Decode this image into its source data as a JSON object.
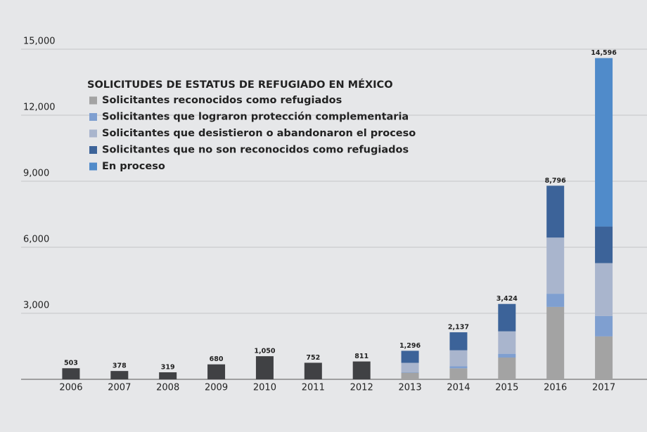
{
  "chart_data": {
    "type": "stacked_bar",
    "legend_title": "SOLICITUDES DE ESTATUS DE REFUGIADO EN MÉXICO",
    "categories": [
      "2006",
      "2007",
      "2008",
      "2009",
      "2010",
      "2011",
      "2012",
      "2013",
      "2014",
      "2015",
      "2016",
      "2017"
    ],
    "series": [
      {
        "name": "Solicitantes reconocidos como refugiados",
        "color": "#a3a3a3",
        "values": [
          null,
          null,
          null,
          null,
          null,
          null,
          null,
          300,
          500,
          990,
          3290,
          1950
        ]
      },
      {
        "name": "Solicitantes que lograron protección complementaria",
        "color": "#7f9fd0",
        "values": [
          null,
          null,
          null,
          null,
          null,
          null,
          null,
          20,
          90,
          170,
          600,
          930
        ]
      },
      {
        "name": "Solicitantes que desistieron o abandonaron el proceso",
        "color": "#a9b5cd",
        "values": [
          null,
          null,
          null,
          null,
          null,
          null,
          null,
          430,
          730,
          1020,
          2550,
          2400
        ]
      },
      {
        "name": "Solicitantes que no son reconocidos como refugiados",
        "color": "#3c6399",
        "values": [
          null,
          null,
          null,
          null,
          null,
          null,
          null,
          546,
          817,
          1244,
          2356,
          1660
        ]
      },
      {
        "name": "En proceso",
        "color": "#508bca",
        "values": [
          null,
          null,
          null,
          null,
          null,
          null,
          null,
          0,
          0,
          0,
          0,
          7656
        ]
      }
    ],
    "totals": {
      "color": "#404144",
      "values": [
        503,
        378,
        319,
        680,
        1050,
        752,
        811,
        1296,
        2137,
        3424,
        8796,
        14596
      ],
      "value_labels": [
        "503",
        "378",
        "319",
        "680",
        "1,050",
        "752",
        "811",
        "1,296",
        "2,137",
        "3,424",
        "8,796",
        "14,596"
      ]
    },
    "ylim": [
      0,
      15000
    ],
    "yticks": [
      {
        "value": 3000,
        "label": "3,000"
      },
      {
        "value": 6000,
        "label": "6,000"
      },
      {
        "value": 9000,
        "label": "9,000"
      },
      {
        "value": 12000,
        "label": "12,000"
      },
      {
        "value": 15000,
        "label": "15,000"
      }
    ],
    "grid": true
  }
}
